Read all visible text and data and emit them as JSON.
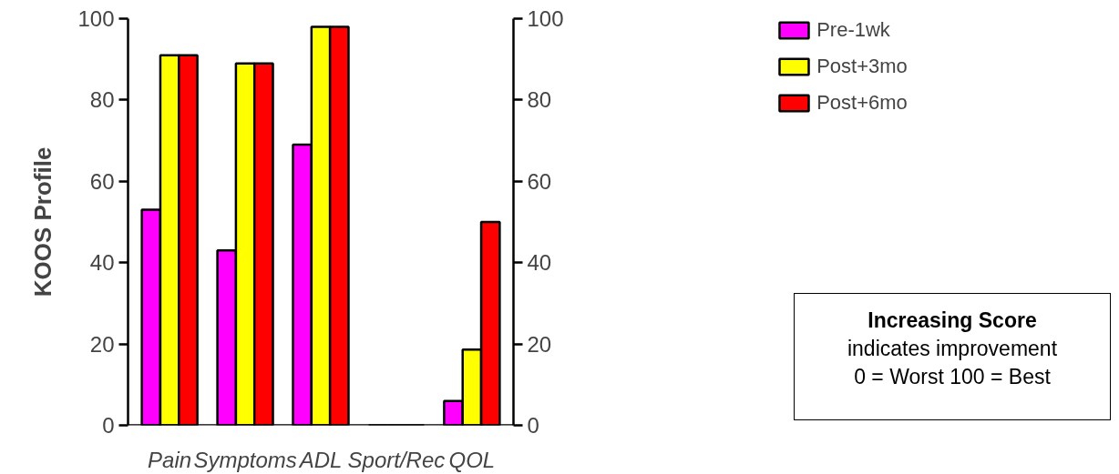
{
  "chart_data": {
    "type": "bar",
    "ylabel": "KOOS Profile",
    "categories": [
      "Pain",
      "Symptoms",
      "ADL",
      "Sport/Rec",
      "QOL"
    ],
    "series": [
      {
        "name": "Pre-1wk",
        "color": "#ff00ff",
        "values": [
          53,
          43,
          69,
          0,
          6
        ]
      },
      {
        "name": "Post+3mo",
        "color": "#ffff00",
        "values": [
          91,
          89,
          98,
          0,
          18.6
        ]
      },
      {
        "name": "Post+6mo",
        "color": "#ff0000",
        "values": [
          91,
          89,
          98,
          0,
          50
        ]
      }
    ],
    "ylim": [
      0,
      100
    ],
    "yticks": [
      0,
      20,
      40,
      60,
      80,
      100
    ],
    "y2lim": [
      0,
      100
    ],
    "y2ticks": [
      0,
      20,
      40,
      60,
      80,
      100
    ],
    "legend": "top right",
    "grid": false,
    "annotations": [
      "Increasing Score",
      "indicates improvement",
      "0 = Worst 100 = Best"
    ]
  }
}
